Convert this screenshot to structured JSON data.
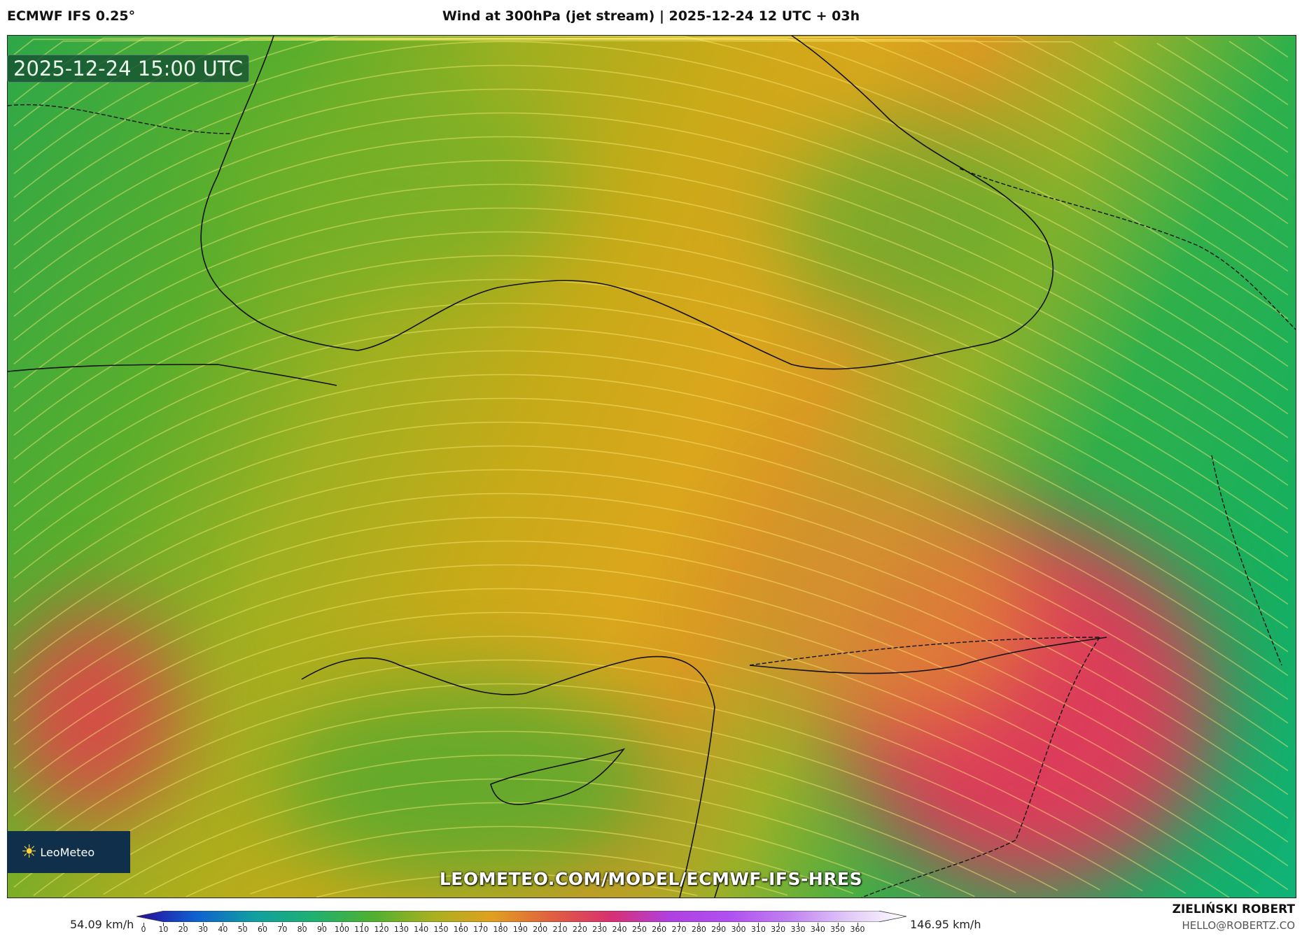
{
  "header": {
    "model": "ECMWF IFS 0.25°",
    "title": "Wind at 300hPa (jet stream) | 2025-12-24 12 UTC + 03h"
  },
  "map": {
    "valid_time": "2025-12-24 15:00 UTC",
    "url": "LEOMETEO.COM/MODEL/ECMWF-IFS-HRES",
    "logo": "LeoMeteo"
  },
  "legend": {
    "min_label": "54.09 km/h",
    "max_label": "146.95 km/h",
    "unit": "km/h",
    "ticks": [
      "0",
      "10",
      "20",
      "30",
      "40",
      "50",
      "60",
      "70",
      "80",
      "90",
      "100",
      "110",
      "120",
      "130",
      "140",
      "150",
      "160",
      "170",
      "180",
      "190",
      "200",
      "210",
      "220",
      "230",
      "240",
      "250",
      "260",
      "270",
      "280",
      "290",
      "300",
      "310",
      "320",
      "330",
      "340",
      "350",
      "360"
    ],
    "colors": [
      "#2a0a9a",
      "#1060d0",
      "#10a0a0",
      "#20b070",
      "#50b030",
      "#a8b020",
      "#e0a020",
      "#e06040",
      "#d83070",
      "#b040e0",
      "#b050f0",
      "#c080f0",
      "#e0c8f8",
      "#ffffff"
    ]
  },
  "footer": {
    "author": "ZIELIŃSKI ROBERT",
    "email": "HELLO@ROBERTZ.CO"
  }
}
